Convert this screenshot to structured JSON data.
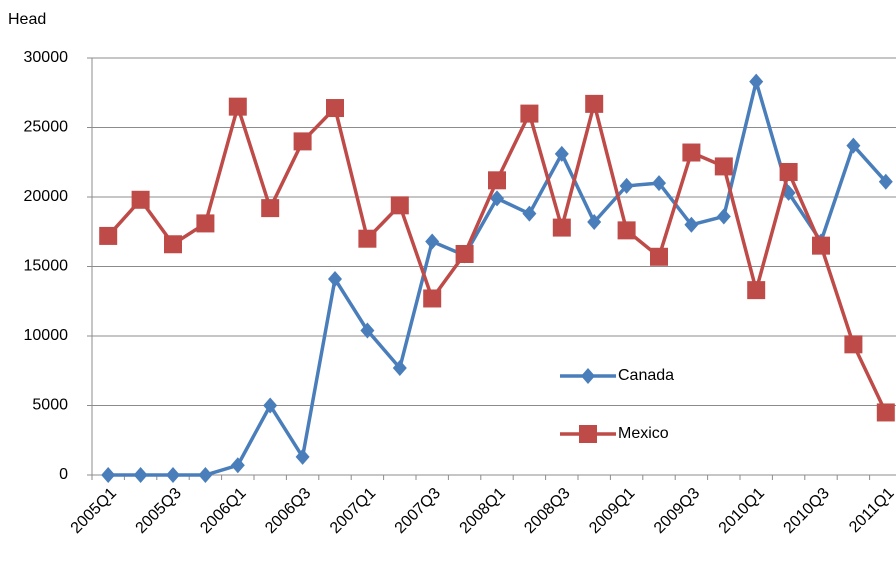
{
  "chart_data": {
    "type": "line",
    "y_label": "Head",
    "categories": [
      "2005Q1",
      null,
      "2005Q3",
      null,
      "2006Q1",
      null,
      "2006Q3",
      null,
      "2007Q1",
      null,
      "2007Q3",
      null,
      "2008Q1",
      null,
      "2008Q3",
      null,
      "2009Q1",
      null,
      "2009Q3",
      null,
      "2010Q1",
      null,
      "2010Q3",
      null,
      "2011Q1"
    ],
    "series": [
      {
        "name": "Canada",
        "color": "#4a7ebb",
        "marker": "diamond",
        "values": [
          0,
          0,
          0,
          0,
          700,
          5000,
          1300,
          14100,
          10400,
          7700,
          16800,
          15800,
          19900,
          18800,
          23100,
          18200,
          20800,
          21000,
          18000,
          18600,
          28300,
          20300,
          16800,
          23700,
          21100
        ]
      },
      {
        "name": "Mexico",
        "color": "#be4b48",
        "marker": "square",
        "values": [
          17200,
          19800,
          16600,
          18100,
          26500,
          19200,
          24000,
          26400,
          17000,
          19400,
          12700,
          15900,
          21200,
          26000,
          17800,
          26700,
          17600,
          15700,
          23200,
          22200,
          13300,
          21800,
          16500,
          9400,
          4500
        ]
      }
    ],
    "ylim": [
      0,
      30000
    ],
    "yticks": [
      0,
      5000,
      10000,
      15000,
      20000,
      25000,
      30000
    ],
    "grid": true
  }
}
